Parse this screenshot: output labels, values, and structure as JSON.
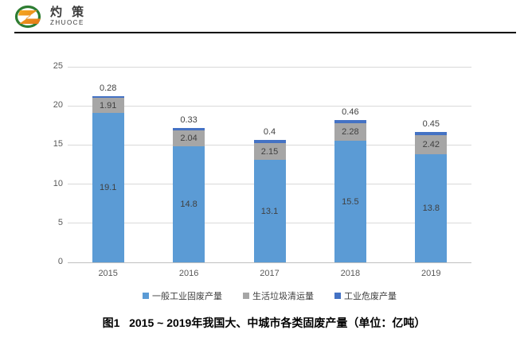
{
  "logo": {
    "text_cn": "灼 策",
    "text_en": "ZHUOCE"
  },
  "chart_data": {
    "type": "bar",
    "stacked": true,
    "title": "",
    "xlabel": "",
    "ylabel": "",
    "categories": [
      "2015",
      "2016",
      "2017",
      "2018",
      "2019"
    ],
    "series": [
      {
        "name": "一般工业固废产量",
        "color": "#5B9BD5",
        "values": [
          19.1,
          14.8,
          13.1,
          15.5,
          13.8
        ],
        "labels": [
          "19.1",
          "14.8",
          "13.1",
          "15.5",
          "13.8"
        ],
        "label_position": "inside"
      },
      {
        "name": "生活垃圾清运量",
        "color": "#A6A6A6",
        "values": [
          1.91,
          2.04,
          2.15,
          2.28,
          2.42
        ],
        "labels": [
          "1.91",
          "2.04",
          "2.15",
          "2.28",
          "2.42"
        ],
        "label_position": "inside"
      },
      {
        "name": "工业危废产量",
        "color": "#4472C4",
        "values": [
          0.28,
          0.33,
          0.4,
          0.46,
          0.45
        ],
        "labels": [
          "0.28",
          "0.33",
          "0.4",
          "0.46",
          "0.45"
        ],
        "label_position": "above"
      }
    ],
    "ylim": [
      0,
      25
    ],
    "yticks": [
      0,
      5,
      10,
      15,
      20,
      25
    ],
    "grid": true,
    "legend_position": "bottom"
  },
  "colors": {
    "grid": "#d9d9d9",
    "axis": "#bfbfbf",
    "tick_text": "#595959",
    "data_label_text": "#404040",
    "divider": "#000000"
  },
  "caption": "图1   2015 ~ 2019年我国大、中城市各类固废产量（单位：亿吨）"
}
